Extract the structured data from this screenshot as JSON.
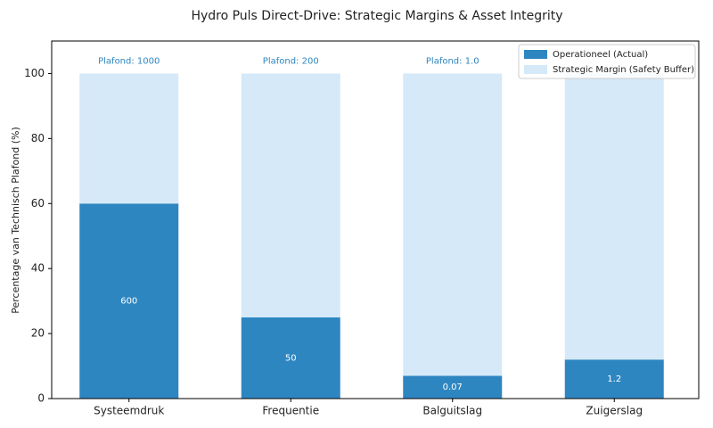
{
  "chart_data": {
    "type": "stacked_bar",
    "title": "Hydro Puls Direct-Drive: Strategic Margins & Asset Integrity",
    "y_label": "Percentage van Technisch Plafond (%)",
    "categories": [
      "Systeemdruk",
      "Frequentie",
      "Balguitslag",
      "Zuigerslag"
    ],
    "series": [
      {
        "name": "Operationeel (Actual)",
        "color": "#2e86c1",
        "values": [
          60,
          25,
          7,
          12
        ]
      },
      {
        "name": "Strategic Margin (Safety Buffer)",
        "color": "#d6e9f8",
        "values": [
          40,
          75,
          93,
          88
        ]
      }
    ],
    "actual_values": [
      600,
      50,
      0.07,
      1.2
    ],
    "annotations": [
      "Plafond: 1000",
      "Plafond: 200",
      "Plafond: 1.0"
    ],
    "ylim": [
      0,
      110
    ],
    "yticks": [
      0,
      20,
      40,
      60,
      80,
      100
    ],
    "legend": "upper right"
  }
}
